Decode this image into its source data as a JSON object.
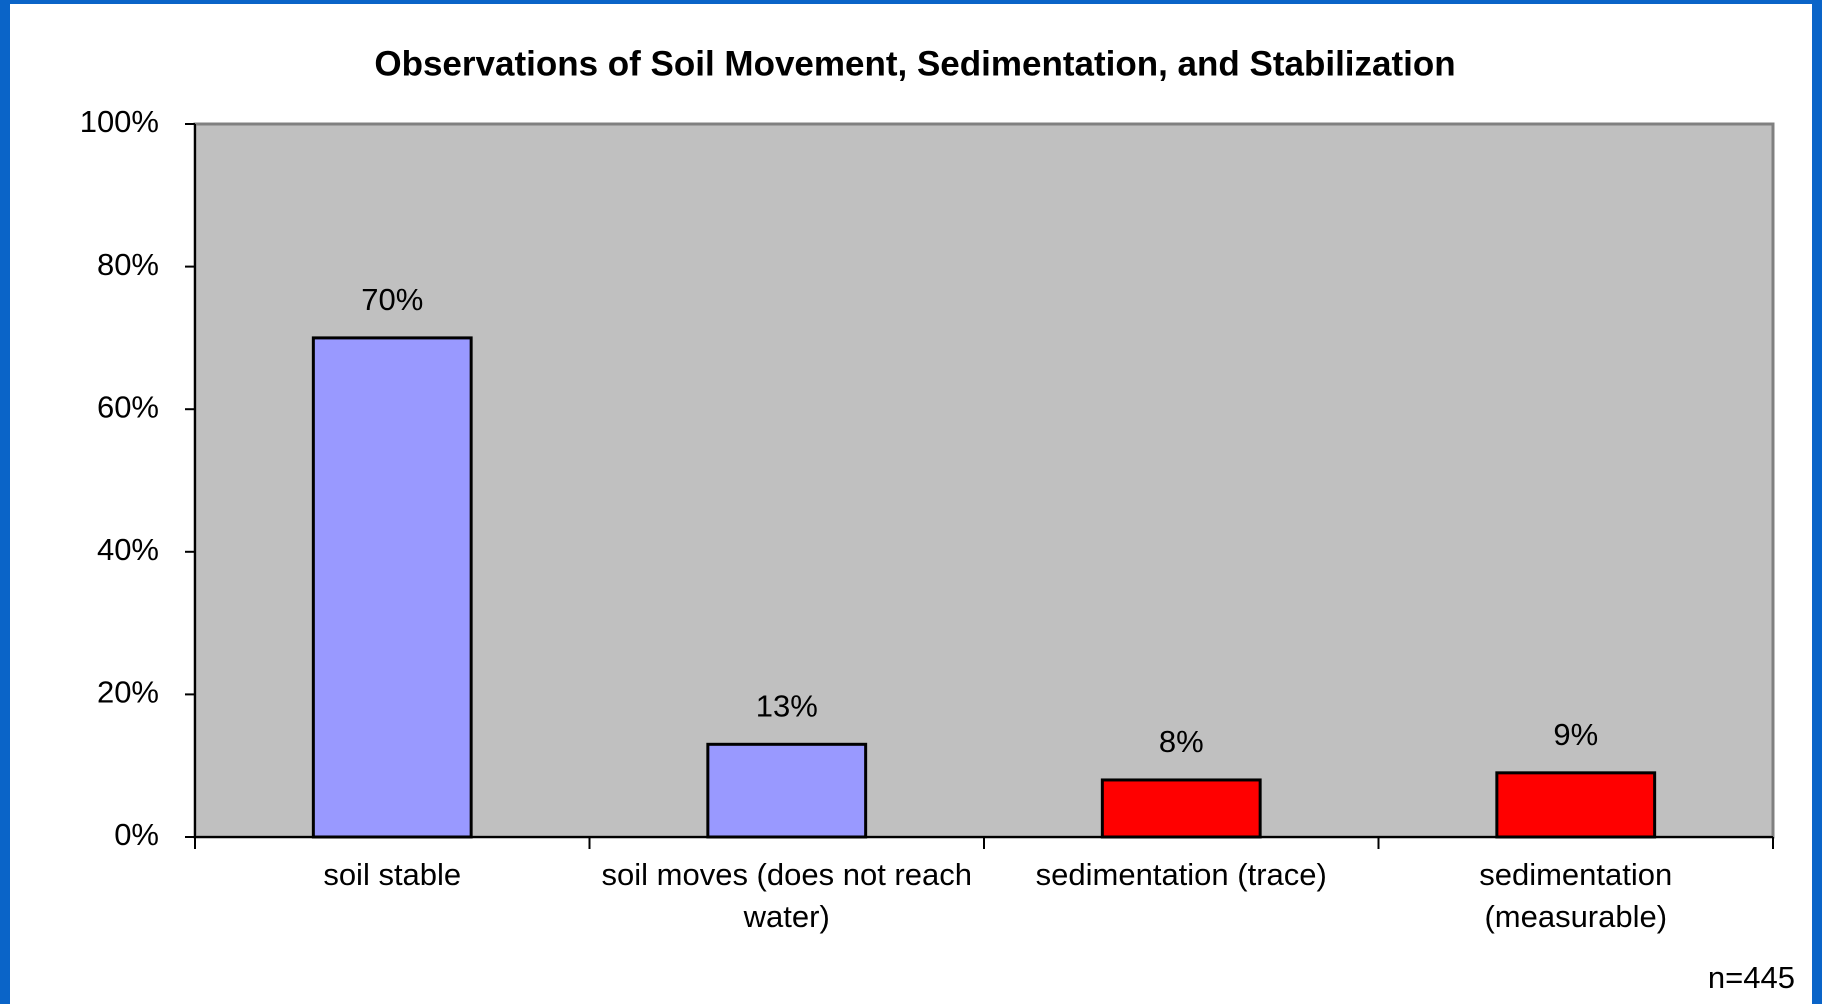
{
  "chart_data": {
    "type": "bar",
    "title": "Observations of Soil Movement, Sedimentation, and Stabilization",
    "categories": [
      "soil stable",
      "soil moves (does not reach water)",
      "sedimentation (trace)",
      "sedimentation (measurable)"
    ],
    "values": [
      70,
      13,
      8,
      9
    ],
    "value_labels": [
      "70%",
      "13%",
      "8%",
      "9%"
    ],
    "colors": [
      "#9999ff",
      "#9999ff",
      "#ff0000",
      "#ff0000"
    ],
    "ylim": [
      0,
      100
    ],
    "yticks": [
      {
        "value": 0,
        "label": "0%"
      },
      {
        "value": 20,
        "label": "20%"
      },
      {
        "value": 40,
        "label": "40%"
      },
      {
        "value": 60,
        "label": "60%"
      },
      {
        "value": 80,
        "label": "80%"
      },
      {
        "value": 100,
        "label": "100%"
      }
    ],
    "grid": false,
    "annotation": "n=445"
  }
}
